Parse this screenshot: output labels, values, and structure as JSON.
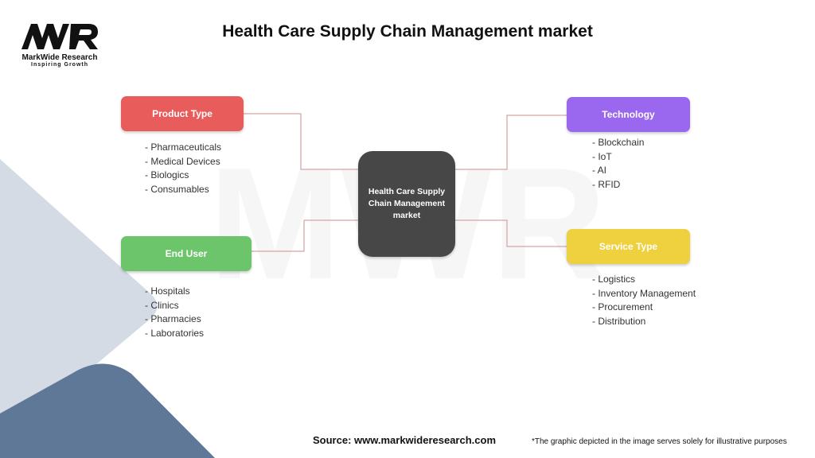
{
  "title": "Health Care Supply Chain Management market",
  "logo": {
    "mark": "MWR",
    "brand": "MarkWide Research",
    "tagline": "Inspiring Growth"
  },
  "center": {
    "label": "Health Care Supply Chain Management market"
  },
  "colors": {
    "product_type": "#e85c5c",
    "end_user": "#6cc46b",
    "technology": "#9a68ef",
    "service_type": "#efd03e",
    "center": "#474747",
    "connector": "#c99090"
  },
  "branches": {
    "product_type": {
      "label": "Product Type",
      "items": [
        "- Pharmaceuticals",
        "- Medical Devices",
        "- Biologics",
        "- Consumables"
      ]
    },
    "end_user": {
      "label": "End User",
      "items": [
        "- Hospitals",
        "- Clinics",
        "- Pharmacies",
        "- Laboratories"
      ]
    },
    "technology": {
      "label": "Technology",
      "items": [
        "- Blockchain",
        "- IoT",
        "- AI",
        "- RFID"
      ]
    },
    "service_type": {
      "label": "Service Type",
      "items": [
        "- Logistics",
        "- Inventory Management",
        "- Procurement",
        "- Distribution"
      ]
    }
  },
  "footer": {
    "source": "Source: www.markwideresearch.com",
    "note": "*The graphic depicted in the image serves solely for illustrative purposes"
  }
}
